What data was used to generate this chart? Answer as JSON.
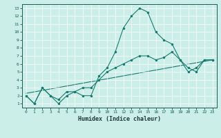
{
  "xlabel": "Humidex (Indice chaleur)",
  "bg_color": "#cceee8",
  "line_color": "#1a7a6e",
  "grid_color": "#ffffff",
  "xlim": [
    -0.5,
    23.5
  ],
  "ylim": [
    0.5,
    13.5
  ],
  "xticks": [
    0,
    1,
    2,
    3,
    4,
    5,
    6,
    7,
    8,
    9,
    10,
    11,
    12,
    13,
    14,
    15,
    16,
    17,
    18,
    19,
    20,
    21,
    22,
    23
  ],
  "yticks": [
    1,
    2,
    3,
    4,
    5,
    6,
    7,
    8,
    9,
    10,
    11,
    12,
    13
  ],
  "series1_x": [
    0,
    1,
    2,
    3,
    4,
    5,
    6,
    7,
    8,
    9,
    10,
    11,
    12,
    13,
    14,
    15,
    16,
    17,
    18,
    19,
    20,
    21,
    22,
    23
  ],
  "series1_y": [
    2.0,
    1.0,
    3.0,
    2.0,
    1.0,
    2.0,
    2.5,
    2.0,
    2.0,
    4.5,
    5.5,
    7.5,
    10.5,
    12.0,
    13.0,
    12.5,
    10.0,
    9.0,
    8.5,
    6.5,
    5.5,
    5.0,
    6.5,
    6.5
  ],
  "series2_x": [
    0,
    1,
    2,
    3,
    4,
    5,
    6,
    7,
    8,
    9,
    10,
    11,
    12,
    13,
    14,
    15,
    16,
    17,
    18,
    19,
    20,
    21,
    22,
    23
  ],
  "series2_y": [
    2.0,
    1.0,
    3.0,
    2.0,
    1.5,
    2.5,
    2.5,
    3.0,
    3.0,
    4.0,
    5.0,
    5.5,
    6.0,
    6.5,
    7.0,
    7.0,
    6.5,
    6.8,
    7.5,
    6.5,
    5.0,
    5.5,
    6.5,
    6.5
  ],
  "series3_x": [
    0,
    23
  ],
  "series3_y": [
    2.3,
    6.5
  ]
}
